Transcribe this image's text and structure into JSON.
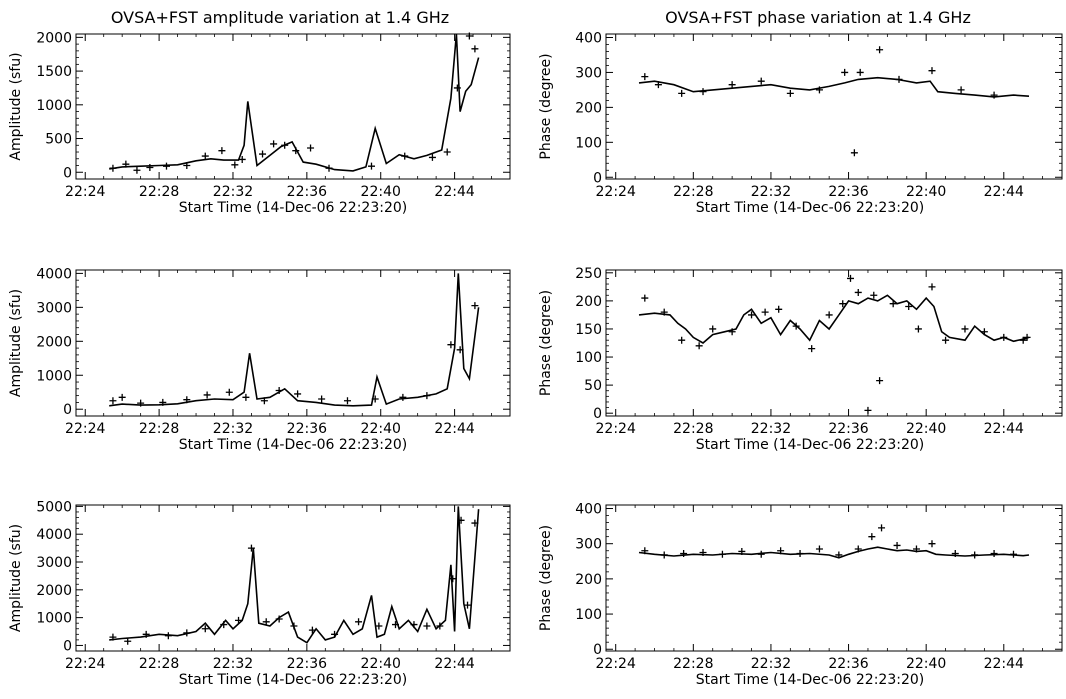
{
  "figure": {
    "left_title": "OVSA+FST amplitude variation at 1.4 GHz",
    "right_title": "OVSA+FST phase variation at 1.4 GHz"
  },
  "chart_data": [
    {
      "type": "line",
      "panel": "amplitude-1",
      "title": "OVSA+FST amplitude variation at 1.4 GHz",
      "xlabel": "Start Time (14-Dec-06 22:23:20)",
      "ylabel": "Amplitude (sfu)",
      "xlim": [
        23.5,
        47
      ],
      "ylim": [
        -100,
        2050
      ],
      "xticks": [
        24,
        28,
        32,
        36,
        40,
        44
      ],
      "xtick_labels": [
        "22:24",
        "22:28",
        "22:32",
        "22:36",
        "22:40",
        "22:44"
      ],
      "yticks": [
        0,
        500,
        1000,
        1500,
        2000
      ],
      "ytick_labels": [
        "0",
        "500",
        "1000",
        "1500",
        "2000"
      ],
      "line": {
        "x": [
          25.3,
          26,
          27,
          28,
          29,
          30,
          30.8,
          31.5,
          32.3,
          32.6,
          32.8,
          33.3,
          34,
          34.6,
          35.2,
          35.8,
          36.5,
          37.5,
          38.5,
          39.2,
          39.7,
          40.3,
          41,
          41.8,
          42.5,
          43.3,
          43.8,
          44.1,
          44.3,
          44.6,
          44.9,
          45.3
        ],
        "y": [
          50,
          80,
          90,
          100,
          110,
          170,
          200,
          180,
          180,
          400,
          1050,
          100,
          250,
          380,
          450,
          150,
          120,
          40,
          20,
          80,
          650,
          130,
          260,
          200,
          250,
          330,
          1100,
          2050,
          900,
          1200,
          1300,
          1700
        ]
      },
      "markers": {
        "x": [
          25.5,
          26.2,
          26.8,
          27.5,
          28.4,
          29.5,
          30.5,
          31.4,
          32.1,
          32.5,
          33.6,
          34.2,
          34.8,
          35.4,
          36.2,
          37.2,
          39.5,
          41.3,
          42.8,
          43.6,
          44.15,
          44.8,
          45.1
        ],
        "y": [
          60,
          120,
          30,
          70,
          90,
          100,
          240,
          320,
          110,
          190,
          270,
          420,
          400,
          320,
          360,
          60,
          90,
          240,
          220,
          300,
          1250,
          2020,
          1830
        ]
      }
    },
    {
      "type": "line",
      "panel": "phase-1",
      "title": "OVSA+FST phase variation at 1.4 GHz",
      "xlabel": "Start Time (14-Dec-06 22:23:20)",
      "ylabel": "Phase (degree)",
      "xlim": [
        23.5,
        47
      ],
      "ylim": [
        -5,
        410
      ],
      "xticks": [
        24,
        28,
        32,
        36,
        40,
        44
      ],
      "xtick_labels": [
        "22:24",
        "22:28",
        "22:32",
        "22:36",
        "22:40",
        "22:44"
      ],
      "yticks": [
        0,
        100,
        200,
        300,
        400
      ],
      "ytick_labels": [
        "0",
        "100",
        "200",
        "300",
        "400"
      ],
      "line": {
        "x": [
          25.2,
          26,
          27,
          28,
          29,
          30,
          31,
          32,
          33,
          34,
          35,
          35.8,
          36.5,
          37.5,
          38.5,
          39.5,
          40.2,
          40.6,
          41.5,
          42.5,
          43.5,
          44.5,
          45.3
        ],
        "y": [
          270,
          275,
          265,
          245,
          250,
          255,
          260,
          265,
          255,
          250,
          260,
          270,
          280,
          285,
          280,
          270,
          275,
          245,
          240,
          235,
          230,
          235,
          232
        ]
      },
      "markers": {
        "x": [
          25.5,
          26.2,
          27.4,
          28.5,
          30,
          31.5,
          33,
          34.5,
          35.8,
          36.3,
          36.6,
          37.6,
          38.6,
          40.3,
          41.8,
          43.5
        ],
        "y": [
          288,
          265,
          240,
          245,
          265,
          275,
          240,
          250,
          300,
          70,
          300,
          365,
          280,
          305,
          250,
          235
        ]
      }
    },
    {
      "type": "line",
      "panel": "amplitude-2",
      "xlabel": "Start Time (14-Dec-06 22:23:20)",
      "ylabel": "Amplitude (sfu)",
      "xlim": [
        23.5,
        47
      ],
      "ylim": [
        -200,
        4100
      ],
      "xticks": [
        24,
        28,
        32,
        36,
        40,
        44
      ],
      "xtick_labels": [
        "22:24",
        "22:28",
        "22:32",
        "22:36",
        "22:40",
        "22:44"
      ],
      "yticks": [
        0,
        1000,
        2000,
        3000,
        4000
      ],
      "ytick_labels": [
        "0",
        "1000",
        "2000",
        "3000",
        "4000"
      ],
      "line": {
        "x": [
          25.3,
          26,
          27,
          28,
          29,
          30,
          31,
          32,
          32.6,
          32.9,
          33.3,
          34,
          34.8,
          35.5,
          36.5,
          37.5,
          38.5,
          39.5,
          39.8,
          40.3,
          41,
          42,
          43,
          43.6,
          44,
          44.2,
          44.5,
          44.8,
          45.3
        ],
        "y": [
          100,
          150,
          120,
          130,
          160,
          250,
          300,
          280,
          500,
          1650,
          300,
          350,
          600,
          250,
          200,
          120,
          100,
          120,
          950,
          150,
          300,
          350,
          450,
          600,
          1800,
          4000,
          1200,
          900,
          3000
        ]
      },
      "markers": {
        "x": [
          25.5,
          26,
          27,
          28.2,
          29.5,
          30.6,
          31.8,
          32.7,
          33.7,
          34.5,
          35.5,
          36.8,
          38.2,
          39.7,
          41.2,
          42.5,
          43.8,
          44.3,
          45.1
        ],
        "y": [
          250,
          350,
          180,
          200,
          280,
          420,
          500,
          350,
          250,
          550,
          450,
          300,
          250,
          300,
          350,
          400,
          1900,
          1750,
          3050
        ]
      }
    },
    {
      "type": "line",
      "panel": "phase-2",
      "xlabel": "Start Time (14-Dec-06 22:23:20)",
      "ylabel": "Phase (degree)",
      "xlim": [
        23.5,
        47
      ],
      "ylim": [
        -5,
        255
      ],
      "xticks": [
        24,
        28,
        32,
        36,
        40,
        44
      ],
      "xtick_labels": [
        "22:24",
        "22:28",
        "22:32",
        "22:36",
        "22:40",
        "22:44"
      ],
      "yticks": [
        0,
        50,
        100,
        150,
        200,
        250
      ],
      "ytick_labels": [
        "0",
        "50",
        "100",
        "150",
        "200",
        "250"
      ],
      "line": {
        "x": [
          25.2,
          26,
          26.8,
          27.2,
          27.6,
          28,
          28.5,
          29,
          29.6,
          30.2,
          30.6,
          31,
          31.5,
          32,
          32.5,
          33,
          33.5,
          34,
          34.5,
          35,
          35.5,
          36,
          36.5,
          37,
          37.5,
          38,
          38.5,
          39,
          39.5,
          40,
          40.4,
          40.8,
          41.2,
          42,
          42.5,
          43,
          43.5,
          44,
          44.5,
          45,
          45.3
        ],
        "y": [
          175,
          178,
          175,
          160,
          150,
          135,
          125,
          140,
          145,
          150,
          175,
          185,
          160,
          170,
          140,
          165,
          150,
          130,
          165,
          150,
          175,
          200,
          195,
          205,
          200,
          210,
          195,
          200,
          185,
          205,
          190,
          145,
          135,
          130,
          155,
          140,
          130,
          135,
          128,
          132,
          135
        ]
      },
      "markers": {
        "x": [
          25.5,
          26.5,
          27.4,
          28.3,
          29,
          30,
          31,
          31.7,
          32.4,
          33.3,
          34.1,
          35,
          35.7,
          36.1,
          36.5,
          37,
          37.3,
          37.6,
          38.3,
          39.1,
          39.6,
          40.3,
          41,
          42,
          43,
          44,
          45,
          45.2
        ],
        "y": [
          205,
          180,
          130,
          120,
          150,
          145,
          175,
          180,
          185,
          155,
          115,
          175,
          195,
          240,
          215,
          5,
          210,
          58,
          195,
          190,
          150,
          225,
          130,
          150,
          145,
          135,
          130,
          135
        ]
      }
    },
    {
      "type": "line",
      "panel": "amplitude-3",
      "xlabel": "Start Time (14-Dec-06 22:23:20)",
      "ylabel": "Amplitude (sfu)",
      "xlim": [
        23.5,
        47
      ],
      "ylim": [
        -200,
        5050
      ],
      "xticks": [
        24,
        28,
        32,
        36,
        40,
        44
      ],
      "xtick_labels": [
        "22:24",
        "22:28",
        "22:32",
        "22:36",
        "22:40",
        "22:44"
      ],
      "yticks": [
        0,
        1000,
        2000,
        3000,
        4000,
        5000
      ],
      "ytick_labels": [
        "0",
        "1000",
        "2000",
        "3000",
        "4000",
        "5000"
      ],
      "line": {
        "x": [
          25.3,
          26,
          27,
          28,
          29,
          30,
          30.5,
          31,
          31.6,
          32,
          32.5,
          32.8,
          33.1,
          33.4,
          34,
          34.5,
          35,
          35.5,
          36,
          36.5,
          37,
          37.5,
          38,
          38.5,
          39,
          39.5,
          39.8,
          40.2,
          40.6,
          41,
          41.5,
          42,
          42.5,
          43,
          43.5,
          43.8,
          44,
          44.2,
          44.5,
          44.8,
          45.3
        ],
        "y": [
          200,
          250,
          300,
          400,
          350,
          500,
          800,
          400,
          900,
          600,
          900,
          1500,
          3500,
          800,
          700,
          1000,
          1200,
          300,
          100,
          600,
          200,
          300,
          900,
          400,
          600,
          1800,
          300,
          400,
          1400,
          600,
          900,
          500,
          1300,
          600,
          900,
          2900,
          500,
          5000,
          1500,
          600,
          4900
        ]
      },
      "markers": {
        "x": [
          25.5,
          26.3,
          27.3,
          28.5,
          29.5,
          30.5,
          31.5,
          32.3,
          33,
          33.8,
          34.5,
          35.3,
          36.3,
          37.5,
          38.8,
          39.9,
          40.8,
          41.8,
          42.5,
          43.2,
          43.9,
          44.35,
          44.7,
          45.1
        ],
        "y": [
          300,
          150,
          400,
          350,
          450,
          600,
          750,
          900,
          3500,
          850,
          950,
          700,
          550,
          400,
          850,
          700,
          750,
          750,
          700,
          700,
          2400,
          4500,
          1450,
          4400
        ]
      }
    },
    {
      "type": "line",
      "panel": "phase-3",
      "xlabel": "Start Time (14-Dec-06 22:23:20)",
      "ylabel": "Phase (degree)",
      "xlim": [
        23.5,
        47
      ],
      "ylim": [
        -5,
        410
      ],
      "xticks": [
        24,
        28,
        32,
        36,
        40,
        44
      ],
      "xtick_labels": [
        "22:24",
        "22:28",
        "22:32",
        "22:36",
        "22:40",
        "22:44"
      ],
      "yticks": [
        0,
        100,
        200,
        300,
        400
      ],
      "ytick_labels": [
        "0",
        "100",
        "200",
        "300",
        "400"
      ],
      "line": {
        "x": [
          25.2,
          26,
          27,
          28,
          29,
          30,
          31,
          32,
          33,
          34,
          35,
          35.5,
          36,
          36.5,
          37,
          37.5,
          38,
          38.5,
          39,
          39.5,
          40,
          40.5,
          41,
          42,
          43,
          44,
          45,
          45.3
        ],
        "y": [
          275,
          270,
          265,
          270,
          268,
          272,
          270,
          275,
          270,
          272,
          268,
          260,
          270,
          278,
          285,
          290,
          285,
          280,
          282,
          278,
          280,
          270,
          268,
          265,
          268,
          270,
          266,
          268
        ]
      },
      "markers": {
        "x": [
          25.5,
          26.5,
          27.5,
          28.5,
          29.5,
          30.5,
          31.5,
          32.5,
          33.5,
          34.5,
          35.5,
          36.5,
          37.2,
          37.7,
          38.5,
          39.5,
          40.3,
          41.5,
          42.5,
          43.5,
          44.5
        ],
        "y": [
          280,
          268,
          272,
          275,
          270,
          278,
          270,
          280,
          272,
          285,
          268,
          285,
          320,
          345,
          295,
          285,
          300,
          272,
          268,
          272,
          270
        ]
      }
    }
  ]
}
